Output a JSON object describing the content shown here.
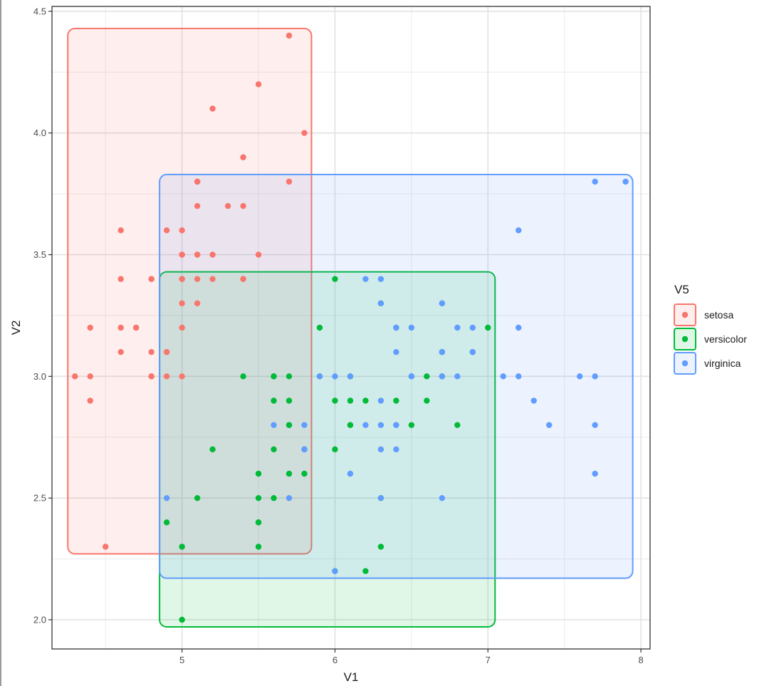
{
  "chart_data": {
    "type": "scatter",
    "xlabel": "V1",
    "ylabel": "V2",
    "xlim": [
      4.15,
      8.06
    ],
    "ylim": [
      1.88,
      4.52
    ],
    "x_ticks": [
      {
        "value": 5,
        "label": "5"
      },
      {
        "value": 6,
        "label": "6"
      },
      {
        "value": 7,
        "label": "7"
      },
      {
        "value": 8,
        "label": "8"
      }
    ],
    "y_ticks": [
      {
        "value": 2.0,
        "label": "2.0"
      },
      {
        "value": 2.5,
        "label": "2.5"
      },
      {
        "value": 3.0,
        "label": "3.0"
      },
      {
        "value": 3.5,
        "label": "3.5"
      },
      {
        "value": 4.0,
        "label": "4.0"
      },
      {
        "value": 4.5,
        "label": "4.5"
      }
    ],
    "grid": true,
    "legend": {
      "title": "V5",
      "position": "right"
    },
    "series": [
      {
        "name": "setosa",
        "color": "#F8766D",
        "box": {
          "xmin": 4.3,
          "xmax": 5.8,
          "ymin": 2.3,
          "ymax": 4.4
        },
        "points": [
          [
            5.1,
            3.5
          ],
          [
            4.9,
            3.0
          ],
          [
            4.7,
            3.2
          ],
          [
            4.6,
            3.1
          ],
          [
            5.0,
            3.6
          ],
          [
            5.4,
            3.9
          ],
          [
            4.6,
            3.4
          ],
          [
            5.0,
            3.4
          ],
          [
            4.4,
            2.9
          ],
          [
            4.9,
            3.1
          ],
          [
            5.4,
            3.7
          ],
          [
            4.8,
            3.4
          ],
          [
            4.8,
            3.0
          ],
          [
            4.3,
            3.0
          ],
          [
            5.8,
            4.0
          ],
          [
            5.7,
            4.4
          ],
          [
            5.4,
            3.9
          ],
          [
            5.1,
            3.5
          ],
          [
            5.7,
            3.8
          ],
          [
            5.1,
            3.8
          ],
          [
            5.4,
            3.4
          ],
          [
            5.1,
            3.7
          ],
          [
            4.6,
            3.6
          ],
          [
            5.1,
            3.3
          ],
          [
            4.8,
            3.4
          ],
          [
            5.0,
            3.0
          ],
          [
            5.0,
            3.4
          ],
          [
            5.2,
            3.5
          ],
          [
            5.2,
            3.4
          ],
          [
            4.7,
            3.2
          ],
          [
            4.8,
            3.1
          ],
          [
            5.4,
            3.4
          ],
          [
            5.2,
            4.1
          ],
          [
            5.5,
            4.2
          ],
          [
            4.9,
            3.1
          ],
          [
            5.0,
            3.2
          ],
          [
            5.5,
            3.5
          ],
          [
            4.9,
            3.6
          ],
          [
            4.4,
            3.0
          ],
          [
            5.1,
            3.4
          ],
          [
            5.0,
            3.5
          ],
          [
            4.5,
            2.3
          ],
          [
            4.4,
            3.2
          ],
          [
            5.0,
            3.5
          ],
          [
            5.1,
            3.8
          ],
          [
            4.8,
            3.0
          ],
          [
            5.1,
            3.8
          ],
          [
            4.6,
            3.2
          ],
          [
            5.3,
            3.7
          ],
          [
            5.0,
            3.3
          ]
        ]
      },
      {
        "name": "versicolor",
        "color": "#00BA38",
        "box": {
          "xmin": 4.9,
          "xmax": 7.0,
          "ymin": 2.0,
          "ymax": 3.4
        },
        "points": [
          [
            7.0,
            3.2
          ],
          [
            6.4,
            3.2
          ],
          [
            6.9,
            3.1
          ],
          [
            5.5,
            2.3
          ],
          [
            6.5,
            2.8
          ],
          [
            5.7,
            2.8
          ],
          [
            6.3,
            3.3
          ],
          [
            4.9,
            2.4
          ],
          [
            6.6,
            2.9
          ],
          [
            5.2,
            2.7
          ],
          [
            5.0,
            2.0
          ],
          [
            5.9,
            3.0
          ],
          [
            6.0,
            2.2
          ],
          [
            6.1,
            2.9
          ],
          [
            5.6,
            2.9
          ],
          [
            6.7,
            3.1
          ],
          [
            5.6,
            3.0
          ],
          [
            5.8,
            2.7
          ],
          [
            6.2,
            2.2
          ],
          [
            5.6,
            2.5
          ],
          [
            5.9,
            3.2
          ],
          [
            6.1,
            2.8
          ],
          [
            6.3,
            2.5
          ],
          [
            6.1,
            2.8
          ],
          [
            6.4,
            2.9
          ],
          [
            6.6,
            3.0
          ],
          [
            6.8,
            2.8
          ],
          [
            6.7,
            3.0
          ],
          [
            6.0,
            2.9
          ],
          [
            5.7,
            2.6
          ],
          [
            5.5,
            2.4
          ],
          [
            5.5,
            2.4
          ],
          [
            5.8,
            2.7
          ],
          [
            6.0,
            2.7
          ],
          [
            5.4,
            3.0
          ],
          [
            6.0,
            3.4
          ],
          [
            6.7,
            3.1
          ],
          [
            6.3,
            2.3
          ],
          [
            5.6,
            3.0
          ],
          [
            5.5,
            2.5
          ],
          [
            5.5,
            2.6
          ],
          [
            6.1,
            3.0
          ],
          [
            5.8,
            2.6
          ],
          [
            5.0,
            2.3
          ],
          [
            5.6,
            2.7
          ],
          [
            5.7,
            3.0
          ],
          [
            5.7,
            2.9
          ],
          [
            6.2,
            2.9
          ],
          [
            5.1,
            2.5
          ],
          [
            5.7,
            2.8
          ]
        ]
      },
      {
        "name": "virginica",
        "color": "#619CFF",
        "box": {
          "xmin": 4.9,
          "xmax": 7.9,
          "ymin": 2.2,
          "ymax": 3.8
        },
        "points": [
          [
            6.3,
            3.3
          ],
          [
            5.8,
            2.7
          ],
          [
            7.1,
            3.0
          ],
          [
            6.3,
            2.9
          ],
          [
            6.5,
            3.0
          ],
          [
            7.6,
            3.0
          ],
          [
            4.9,
            2.5
          ],
          [
            7.3,
            2.9
          ],
          [
            6.7,
            2.5
          ],
          [
            7.2,
            3.6
          ],
          [
            6.5,
            3.2
          ],
          [
            6.4,
            2.7
          ],
          [
            6.8,
            3.0
          ],
          [
            5.7,
            2.5
          ],
          [
            5.8,
            2.8
          ],
          [
            6.4,
            3.2
          ],
          [
            6.5,
            3.0
          ],
          [
            7.7,
            3.8
          ],
          [
            7.7,
            2.6
          ],
          [
            6.0,
            2.2
          ],
          [
            6.9,
            3.2
          ],
          [
            5.6,
            2.8
          ],
          [
            7.7,
            2.8
          ],
          [
            6.3,
            2.7
          ],
          [
            6.7,
            3.3
          ],
          [
            7.2,
            3.2
          ],
          [
            6.2,
            2.8
          ],
          [
            6.1,
            3.0
          ],
          [
            6.4,
            2.8
          ],
          [
            7.2,
            3.0
          ],
          [
            7.4,
            2.8
          ],
          [
            7.9,
            3.8
          ],
          [
            6.4,
            2.8
          ],
          [
            6.3,
            2.8
          ],
          [
            6.1,
            2.6
          ],
          [
            7.7,
            3.0
          ],
          [
            6.3,
            3.4
          ],
          [
            6.4,
            3.1
          ],
          [
            6.0,
            3.0
          ],
          [
            6.9,
            3.1
          ],
          [
            6.7,
            3.1
          ],
          [
            6.9,
            3.1
          ],
          [
            5.8,
            2.7
          ],
          [
            6.8,
            3.2
          ],
          [
            6.7,
            3.3
          ],
          [
            6.7,
            3.0
          ],
          [
            6.3,
            2.5
          ],
          [
            6.5,
            3.0
          ],
          [
            6.2,
            3.4
          ],
          [
            5.9,
            3.0
          ]
        ]
      }
    ]
  }
}
